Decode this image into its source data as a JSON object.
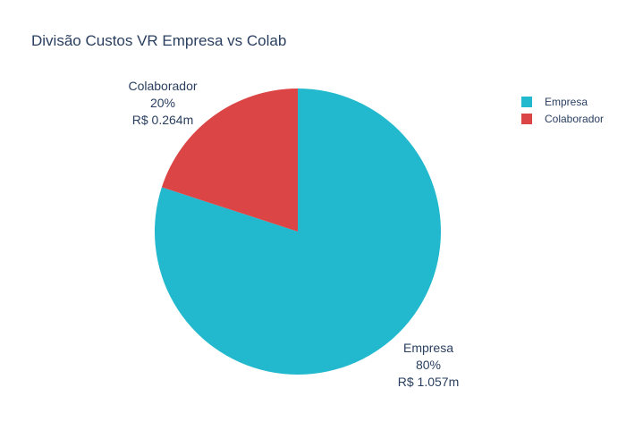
{
  "chart_data": {
    "type": "pie",
    "title": "Divisão Custos VR Empresa vs Colab",
    "slices": [
      {
        "label": "Empresa",
        "percent_text": "80%",
        "value_text": "R$ 1.057m",
        "value": 1.057,
        "color": "#22b8cd"
      },
      {
        "label": "Colaborador",
        "percent_text": "20%",
        "value_text": "R$ 0.264m",
        "value": 0.264,
        "color": "#dc4545"
      }
    ],
    "legend": {
      "placement": "top-right",
      "entries": [
        "Empresa",
        "Colaborador"
      ]
    }
  }
}
